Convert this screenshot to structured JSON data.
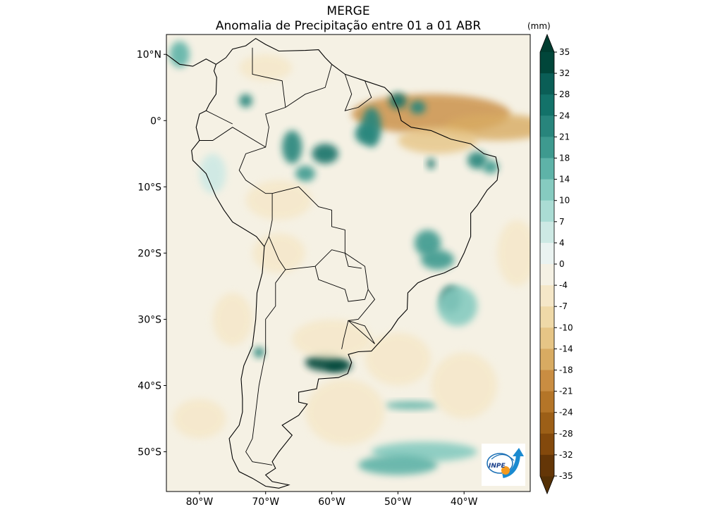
{
  "title": {
    "line1": "MERGE",
    "line2": "Anomalia de Precipitação entre 01 a 01 ABR"
  },
  "colorbar": {
    "unit": "(mm)",
    "ticks": [
      "35",
      "32",
      "28",
      "24",
      "21",
      "18",
      "14",
      "10",
      "7",
      "4",
      "0",
      "-4",
      "-7",
      "-10",
      "-14",
      "-18",
      "-21",
      "-24",
      "-28",
      "-32",
      "-35"
    ],
    "colors": [
      "#01463a",
      "#0a5e56",
      "#137269",
      "#28857c",
      "#3e9a8f",
      "#5eb3a8",
      "#86cbc0",
      "#aadcd4",
      "#cde9e4",
      "#eaf3f1",
      "#f5f1e4",
      "#f5e7c8",
      "#efd9a8",
      "#e6c586",
      "#d8ab62",
      "#c98d42",
      "#b47528",
      "#9c5f17",
      "#83490c",
      "#643607"
    ],
    "extend_max_color": "#003c30",
    "extend_min_color": "#543005"
  },
  "axes": {
    "lon_range": [
      -85,
      -30
    ],
    "lat_range": [
      -56,
      13
    ],
    "lon_ticks": [
      {
        "value": -80,
        "label": "80°W"
      },
      {
        "value": -70,
        "label": "70°W"
      },
      {
        "value": -60,
        "label": "60°W"
      },
      {
        "value": -50,
        "label": "50°W"
      },
      {
        "value": -40,
        "label": "40°W"
      }
    ],
    "lat_ticks": [
      {
        "value": 10,
        "label": "10°N"
      },
      {
        "value": 0,
        "label": "0°"
      },
      {
        "value": -10,
        "label": "10°S"
      },
      {
        "value": -20,
        "label": "20°S"
      },
      {
        "value": -30,
        "label": "30°S"
      },
      {
        "value": -40,
        "label": "40°S"
      },
      {
        "value": -50,
        "label": "50°S"
      }
    ]
  },
  "logo": {
    "text": "INPE"
  },
  "colors": {
    "background": "#f5f1e4",
    "coast": "#000000"
  }
}
